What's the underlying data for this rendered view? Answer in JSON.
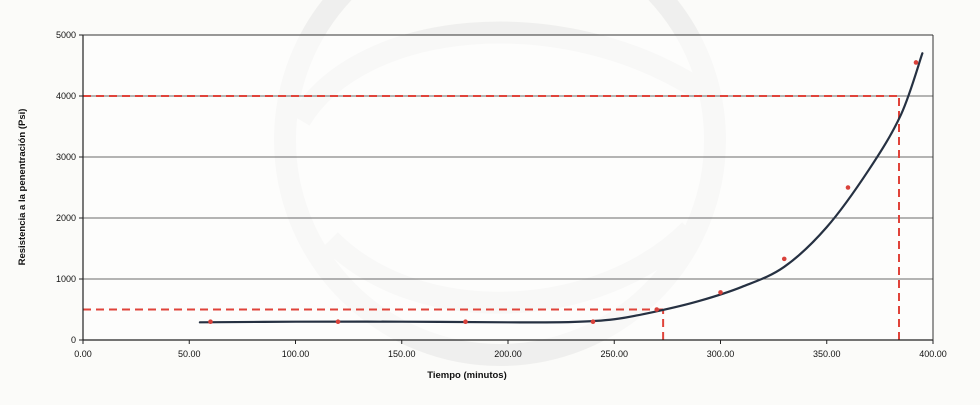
{
  "chart_data": {
    "type": "line",
    "title": "",
    "xlabel": "Tiempo (minutos)",
    "ylabel": "Resistencia a la penentración (Psi)",
    "xlim": [
      0,
      400
    ],
    "ylim": [
      0,
      5000
    ],
    "x_ticks": [
      "0.00",
      "50.00",
      "100.00",
      "150.00",
      "200.00",
      "250.00",
      "300.00",
      "350.00",
      "400.00"
    ],
    "y_ticks": [
      "0",
      "1000",
      "2000",
      "3000",
      "4000",
      "5000"
    ],
    "grid": "horizontal",
    "legend": "none",
    "series": [
      {
        "kind": "points",
        "x": [
          60,
          120,
          180,
          240,
          270,
          300,
          330,
          360,
          392
        ],
        "y": [
          300,
          300,
          300,
          300,
          500,
          780,
          1330,
          2500,
          4550
        ],
        "color": "#d9413a"
      },
      {
        "kind": "trend-line",
        "x": [
          55,
          100,
          150,
          200,
          230,
          250,
          270,
          290,
          310,
          330,
          350,
          370,
          385,
          395
        ],
        "y": [
          290,
          300,
          300,
          290,
          295,
          340,
          470,
          640,
          870,
          1200,
          1850,
          2800,
          3700,
          4700
        ],
        "color": "#263142"
      }
    ],
    "reference_lines": [
      {
        "kind": "horizontal",
        "y": 4000,
        "x_end": 384,
        "color": "#e0433a"
      },
      {
        "kind": "vertical",
        "x": 384,
        "y_end": 4000,
        "color": "#e0433a"
      },
      {
        "kind": "horizontal",
        "y": 500,
        "x_end": 273,
        "color": "#e0433a"
      },
      {
        "kind": "vertical",
        "x": 273,
        "y_end": 500,
        "color": "#e0433a"
      }
    ]
  }
}
